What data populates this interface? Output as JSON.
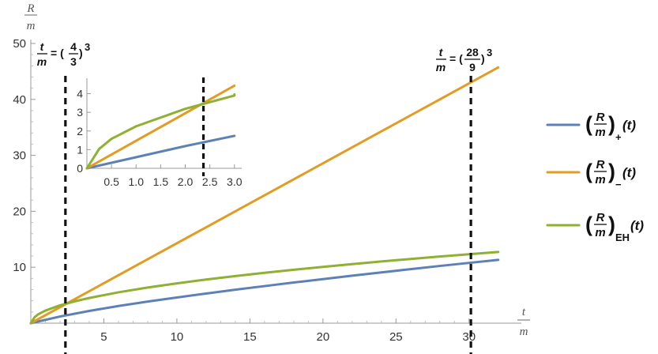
{
  "chart_data": [
    {
      "type": "line",
      "x_axis_label": {
        "numerator": "t",
        "denominator": "m"
      },
      "y_axis_label": {
        "numerator": "R",
        "denominator": "m"
      },
      "xlim": [
        0,
        32.5
      ],
      "ylim": [
        0,
        50
      ],
      "x_ticks": [
        5,
        10,
        15,
        20,
        25,
        30
      ],
      "y_ticks": [
        10,
        20,
        30,
        40,
        50
      ],
      "series": [
        {
          "name": "(R/m)_+(t)",
          "color": "#5E81B5",
          "x": [
            0,
            2,
            4,
            6,
            8,
            10,
            12,
            14,
            16,
            18,
            20,
            22,
            24,
            26,
            28,
            30,
            32
          ],
          "y": [
            0,
            1.19,
            2.19,
            3.07,
            3.86,
            4.59,
            5.3,
            5.98,
            6.63,
            7.27,
            7.88,
            8.49,
            9.08,
            9.66,
            10.23,
            10.78,
            11.32
          ]
        },
        {
          "name": "(R/m)_−(t)",
          "color": "#E19C24",
          "x": [
            0,
            4,
            8,
            12,
            16,
            20,
            24,
            28,
            32
          ],
          "y": [
            0,
            5.71,
            11.43,
            17.14,
            22.86,
            28.57,
            34.29,
            40.0,
            45.71
          ]
        },
        {
          "name": "(R/m)_EH(t)",
          "color": "#8FB032",
          "x": [
            0,
            0.25,
            0.5,
            1,
            2,
            3,
            4,
            6,
            8,
            10,
            12,
            14,
            16,
            18,
            20,
            22,
            24,
            26,
            28,
            30,
            32
          ],
          "y": [
            0,
            1.04,
            1.58,
            2.25,
            3.19,
            3.9,
            4.5,
            5.52,
            6.37,
            7.12,
            7.8,
            8.42,
            9.0,
            9.55,
            10.07,
            10.56,
            11.03,
            11.48,
            11.91,
            12.33,
            12.73
          ]
        }
      ],
      "reference_lines": [
        {
          "x": 2.37,
          "label": {
            "lhs_num": "t",
            "lhs_den": "m",
            "eq": "= (",
            "num": "4",
            "den": "3",
            "close": ")",
            "exp": "3"
          }
        },
        {
          "x": 30.128,
          "label": {
            "lhs_num": "t",
            "lhs_den": "m",
            "eq": "= (",
            "num": "28",
            "den": "9",
            "close": ")",
            "exp": "3"
          }
        }
      ],
      "legend": {
        "placement": "right",
        "entries": [
          {
            "lpar": "(",
            "num": "R",
            "den": "m",
            "rpar": ")",
            "sub": "+",
            "arg": "(t)",
            "color": "#5E81B5"
          },
          {
            "lpar": "(",
            "num": "R",
            "den": "m",
            "rpar": ")",
            "sub": "−",
            "arg": "(t)",
            "color": "#E19C24"
          },
          {
            "lpar": "(",
            "num": "R",
            "den": "m",
            "rpar": ")",
            "sub": "EH",
            "arg": "(t)",
            "color": "#8FB032"
          }
        ]
      }
    },
    {
      "type": "line",
      "inset": true,
      "xlim": [
        0,
        3.1
      ],
      "ylim": [
        0,
        4.7
      ],
      "x_ticks": [
        "0.5",
        "1.0",
        "1.5",
        "2.0",
        "2.5",
        "3.0"
      ],
      "y_ticks": [
        "0",
        "1",
        "2",
        "3",
        "4"
      ],
      "reference_lines": [
        {
          "x": 2.37
        }
      ]
    }
  ]
}
